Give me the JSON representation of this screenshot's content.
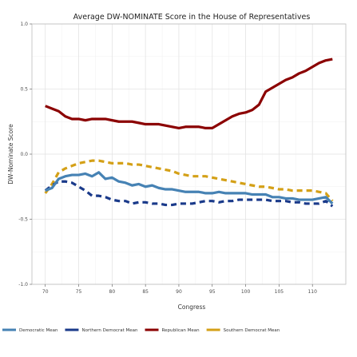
{
  "chart_data": {
    "type": "line",
    "title": "Average DW-NOMINATE Score in the House of Representatives",
    "xlabel": "Congress",
    "ylabel": "DW-Nominate Score",
    "xlim": [
      68,
      115
    ],
    "ylim": [
      -1.0,
      1.0
    ],
    "xticks": [
      70,
      75,
      80,
      85,
      90,
      95,
      100,
      105,
      110
    ],
    "yticks": [
      -1.0,
      -0.5,
      0.0,
      0.5,
      1.0
    ],
    "ytick_labels": [
      "-1.0",
      "-0.5",
      "0.0",
      "0.5",
      "1.0"
    ],
    "grid": true,
    "legend_position": "bottom",
    "x": [
      70,
      71,
      72,
      73,
      74,
      75,
      76,
      77,
      78,
      79,
      80,
      81,
      82,
      83,
      84,
      85,
      86,
      87,
      88,
      89,
      90,
      91,
      92,
      93,
      94,
      95,
      96,
      97,
      98,
      99,
      100,
      101,
      102,
      103,
      104,
      105,
      106,
      107,
      108,
      109,
      110,
      111,
      112,
      113
    ],
    "series": [
      {
        "name": "Democratic Mean",
        "color": "#4682b4",
        "dash": "solid",
        "values": [
          -0.28,
          -0.26,
          -0.19,
          -0.17,
          -0.16,
          -0.16,
          -0.15,
          -0.17,
          -0.14,
          -0.19,
          -0.18,
          -0.21,
          -0.22,
          -0.24,
          -0.23,
          -0.25,
          -0.24,
          -0.26,
          -0.27,
          -0.27,
          -0.28,
          -0.29,
          -0.29,
          -0.29,
          -0.3,
          -0.3,
          -0.29,
          -0.3,
          -0.3,
          -0.3,
          -0.3,
          -0.31,
          -0.31,
          -0.31,
          -0.33,
          -0.33,
          -0.34,
          -0.34,
          -0.35,
          -0.35,
          -0.35,
          -0.34,
          -0.33,
          -0.38
        ]
      },
      {
        "name": "Northern Democrat Mean",
        "color": "#1a3a8a",
        "dash": "dashed",
        "values": [
          -0.28,
          -0.24,
          -0.21,
          -0.21,
          -0.22,
          -0.25,
          -0.28,
          -0.32,
          -0.32,
          -0.33,
          -0.35,
          -0.36,
          -0.36,
          -0.38,
          -0.37,
          -0.37,
          -0.38,
          -0.38,
          -0.39,
          -0.39,
          -0.38,
          -0.38,
          -0.38,
          -0.37,
          -0.36,
          -0.36,
          -0.37,
          -0.36,
          -0.36,
          -0.35,
          -0.35,
          -0.35,
          -0.35,
          -0.35,
          -0.36,
          -0.36,
          -0.36,
          -0.37,
          -0.37,
          -0.38,
          -0.38,
          -0.38,
          -0.36,
          -0.4
        ]
      },
      {
        "name": "Republican Mean",
        "color": "#8b0000",
        "dash": "solid",
        "values": [
          0.37,
          0.35,
          0.33,
          0.29,
          0.27,
          0.27,
          0.26,
          0.27,
          0.27,
          0.27,
          0.26,
          0.25,
          0.25,
          0.25,
          0.24,
          0.23,
          0.23,
          0.23,
          0.22,
          0.21,
          0.2,
          0.21,
          0.21,
          0.21,
          0.2,
          0.2,
          0.23,
          0.26,
          0.29,
          0.31,
          0.32,
          0.34,
          0.38,
          0.48,
          0.51,
          0.54,
          0.57,
          0.59,
          0.62,
          0.64,
          0.67,
          0.7,
          0.72,
          0.73
        ]
      },
      {
        "name": "Southern Democrat Mean",
        "color": "#d4a017",
        "dash": "dashed",
        "values": [
          -0.3,
          -0.23,
          -0.14,
          -0.11,
          -0.09,
          -0.07,
          -0.06,
          -0.05,
          -0.05,
          -0.06,
          -0.07,
          -0.07,
          -0.07,
          -0.08,
          -0.08,
          -0.09,
          -0.1,
          -0.11,
          -0.12,
          -0.13,
          -0.15,
          -0.16,
          -0.17,
          -0.17,
          -0.17,
          -0.18,
          -0.19,
          -0.2,
          -0.21,
          -0.22,
          -0.23,
          -0.24,
          -0.25,
          -0.25,
          -0.26,
          -0.27,
          -0.27,
          -0.28,
          -0.28,
          -0.28,
          -0.28,
          -0.29,
          -0.3,
          -0.36
        ]
      }
    ]
  }
}
